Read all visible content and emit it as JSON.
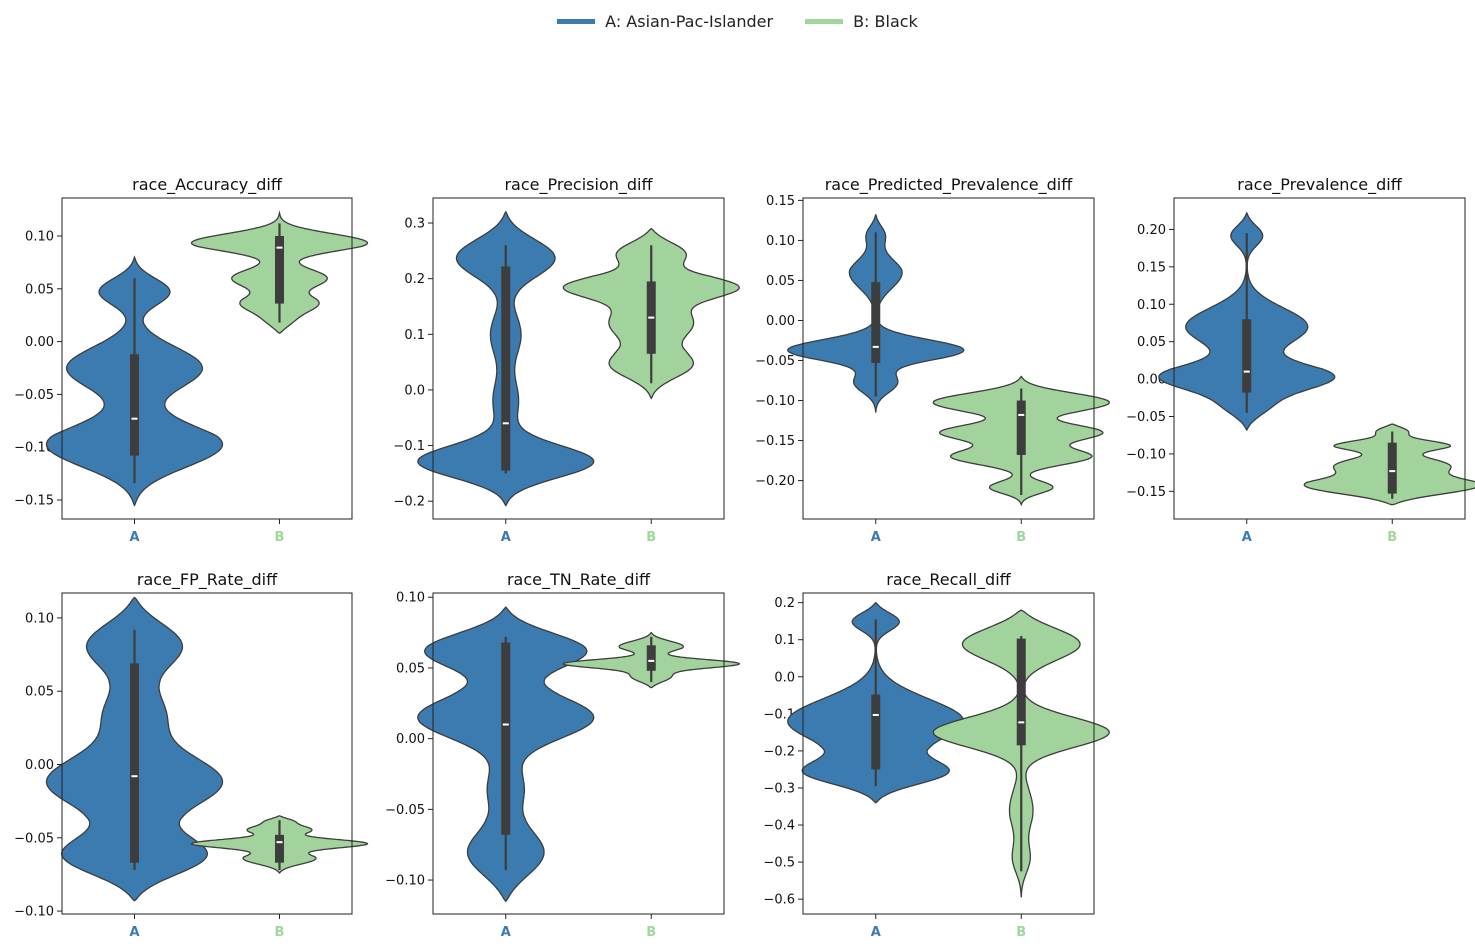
{
  "legend": {
    "items": [
      {
        "label": "A: Asian-Pac-Islander",
        "color": "#3b7bb0"
      },
      {
        "label": "B: Black",
        "color": "#9fd89a"
      }
    ]
  },
  "colors": {
    "A": "#3b7bb0",
    "B": "#a3d39c",
    "box": "#3d3d3d",
    "median": "#ffffff",
    "outline": "#3d3d3d"
  },
  "chart_data": [
    {
      "type": "violin",
      "title": "race_Accuracy_diff",
      "categories": [
        "A",
        "B"
      ],
      "ylim": [
        -0.168,
        0.136
      ],
      "yticks": [
        -0.15,
        -0.1,
        -0.05,
        0.0,
        0.05,
        0.1
      ],
      "ytick_labels": [
        "−0.15",
        "−0.10",
        "−0.05",
        "0.00",
        "0.05",
        "0.10"
      ],
      "series": [
        {
          "category": "A",
          "min": -0.155,
          "max": 0.08,
          "whisker": [
            -0.134,
            0.06
          ],
          "q1": -0.108,
          "median": -0.073,
          "q3": -0.012,
          "modes": [
            [
              -0.102,
              1.0,
              0.022
            ],
            [
              -0.025,
              0.7,
              0.02
            ],
            [
              0.05,
              0.55,
              0.013
            ]
          ]
        },
        {
          "category": "B",
          "min": 0.008,
          "max": 0.122,
          "whisker": [
            0.018,
            0.112
          ],
          "q1": 0.036,
          "median": 0.089,
          "q3": 0.1,
          "modes": [
            [
              0.095,
              1.0,
              0.009
            ],
            [
              0.06,
              0.5,
              0.009
            ],
            [
              0.035,
              0.42,
              0.008
            ],
            [
              0.018,
              0.22,
              0.008
            ]
          ]
        }
      ]
    },
    {
      "type": "violin",
      "title": "race_Precision_diff",
      "categories": [
        "A",
        "B"
      ],
      "ylim": [
        -0.232,
        0.345
      ],
      "yticks": [
        -0.2,
        -0.1,
        0.0,
        0.1,
        0.2,
        0.3
      ],
      "ytick_labels": [
        "−0.2",
        "−0.1",
        "0.0",
        "0.1",
        "0.2",
        "0.3"
      ],
      "series": [
        {
          "category": "A",
          "min": -0.208,
          "max": 0.32,
          "whisker": [
            -0.15,
            0.26
          ],
          "q1": -0.145,
          "median": -0.06,
          "q3": 0.222,
          "modes": [
            [
              -0.135,
              1.0,
              0.03
            ],
            [
              0.245,
              0.55,
              0.035
            ],
            [
              0.1,
              0.12,
              0.04
            ],
            [
              -0.02,
              0.1,
              0.04
            ]
          ]
        },
        {
          "category": "B",
          "min": -0.015,
          "max": 0.29,
          "whisker": [
            0.012,
            0.26
          ],
          "q1": 0.065,
          "median": 0.13,
          "q3": 0.195,
          "modes": [
            [
              0.185,
              1.0,
              0.02
            ],
            [
              0.25,
              0.6,
              0.022
            ],
            [
              0.12,
              0.5,
              0.03
            ],
            [
              0.04,
              0.6,
              0.025
            ]
          ]
        }
      ]
    },
    {
      "type": "violin",
      "title": "race_Predicted_Prevalence_diff",
      "categories": [
        "A",
        "B"
      ],
      "ylim": [
        -0.248,
        0.153
      ],
      "yticks": [
        -0.2,
        -0.15,
        -0.1,
        -0.05,
        0.0,
        0.05,
        0.1,
        0.15
      ],
      "ytick_labels": [
        "−0.20",
        "−0.15",
        "−0.10",
        "−0.05",
        "0.00",
        "0.05",
        "0.10",
        "0.15"
      ],
      "series": [
        {
          "category": "A",
          "min": -0.115,
          "max": 0.132,
          "whisker": [
            -0.095,
            0.11
          ],
          "q1": -0.053,
          "median": -0.033,
          "q3": 0.048,
          "modes": [
            [
              -0.037,
              1.0,
              0.013
            ],
            [
              -0.08,
              0.35,
              0.013
            ],
            [
              0.06,
              0.3,
              0.02
            ],
            [
              0.11,
              0.18,
              0.012
            ]
          ]
        },
        {
          "category": "B",
          "min": -0.23,
          "max": -0.07,
          "whisker": [
            -0.218,
            -0.085
          ],
          "q1": -0.168,
          "median": -0.118,
          "q3": -0.1,
          "modes": [
            [
              -0.1,
              1.0,
              0.012
            ],
            [
              -0.14,
              0.75,
              0.01
            ],
            [
              -0.17,
              0.65,
              0.01
            ],
            [
              -0.21,
              0.45,
              0.008
            ]
          ]
        }
      ]
    },
    {
      "type": "violin",
      "title": "race_Prevalence_diff",
      "categories": [
        "A",
        "B"
      ],
      "ylim": [
        -0.187,
        0.242
      ],
      "yticks": [
        -0.15,
        -0.1,
        -0.05,
        0.0,
        0.05,
        0.1,
        0.15,
        0.2
      ],
      "ytick_labels": [
        "−0.15",
        "−0.10",
        "−0.05",
        "0.00",
        "0.05",
        "0.10",
        "0.15",
        "0.20"
      ],
      "series": [
        {
          "category": "A",
          "min": -0.068,
          "max": 0.222,
          "whisker": [
            -0.045,
            0.195
          ],
          "q1": -0.018,
          "median": 0.01,
          "q3": 0.08,
          "modes": [
            [
              0.0,
              1.0,
              0.018
            ],
            [
              0.07,
              0.65,
              0.025
            ],
            [
              0.195,
              0.3,
              0.014
            ],
            [
              -0.04,
              0.35,
              0.015
            ]
          ]
        },
        {
          "category": "B",
          "min": -0.168,
          "max": -0.06,
          "whisker": [
            -0.16,
            -0.07
          ],
          "q1": -0.153,
          "median": -0.123,
          "q3": -0.085,
          "modes": [
            [
              -0.145,
              1.0,
              0.012
            ],
            [
              -0.115,
              0.55,
              0.01
            ],
            [
              -0.088,
              0.6,
              0.007
            ],
            [
              -0.068,
              0.3,
              0.006
            ]
          ]
        }
      ]
    },
    {
      "type": "violin",
      "title": "race_FP_Rate_diff",
      "categories": [
        "A",
        "B"
      ],
      "ylim": [
        -0.102,
        0.117
      ],
      "yticks": [
        -0.1,
        -0.05,
        0.0,
        0.05,
        0.1
      ],
      "ytick_labels": [
        "−0.10",
        "−0.05",
        "0.00",
        "0.05",
        "0.10"
      ],
      "series": [
        {
          "category": "A",
          "min": -0.093,
          "max": 0.114,
          "whisker": [
            -0.072,
            0.092
          ],
          "q1": -0.067,
          "median": -0.008,
          "q3": 0.069,
          "modes": [
            [
              -0.065,
              1.0,
              0.014
            ],
            [
              -0.012,
              0.85,
              0.018
            ],
            [
              0.085,
              0.65,
              0.016
            ],
            [
              0.035,
              0.28,
              0.016
            ]
          ]
        },
        {
          "category": "B",
          "min": -0.074,
          "max": -0.035,
          "whisker": [
            -0.072,
            -0.038
          ],
          "q1": -0.067,
          "median": -0.053,
          "q3": -0.048,
          "modes": [
            [
              -0.054,
              1.0,
              0.003
            ],
            [
              -0.065,
              0.45,
              0.004
            ],
            [
              -0.044,
              0.4,
              0.003
            ],
            [
              -0.038,
              0.25,
              0.002
            ]
          ]
        }
      ]
    },
    {
      "type": "violin",
      "title": "race_TN_Rate_diff",
      "categories": [
        "A",
        "B"
      ],
      "ylim": [
        -0.124,
        0.103
      ],
      "yticks": [
        -0.1,
        -0.05,
        0.0,
        0.05,
        0.1
      ],
      "ytick_labels": [
        "−0.10",
        "−0.05",
        "0.00",
        "0.05",
        "0.10"
      ],
      "series": [
        {
          "category": "A",
          "min": -0.115,
          "max": 0.093,
          "whisker": [
            -0.093,
            0.072
          ],
          "q1": -0.068,
          "median": 0.01,
          "q3": 0.068,
          "modes": [
            [
              0.065,
              1.0,
              0.013
            ],
            [
              0.015,
              0.75,
              0.015
            ],
            [
              -0.085,
              0.45,
              0.017
            ],
            [
              -0.035,
              0.15,
              0.015
            ]
          ]
        },
        {
          "category": "B",
          "min": 0.036,
          "max": 0.075,
          "whisker": [
            0.04,
            0.072
          ],
          "q1": 0.048,
          "median": 0.055,
          "q3": 0.066,
          "modes": [
            [
              0.053,
              1.0,
              0.003
            ],
            [
              0.066,
              0.4,
              0.004
            ],
            [
              0.043,
              0.28,
              0.004
            ]
          ]
        }
      ]
    },
    {
      "type": "violin",
      "title": "race_Recall_diff",
      "categories": [
        "A",
        "B"
      ],
      "ylim": [
        -0.64,
        0.226
      ],
      "yticks": [
        -0.6,
        -0.5,
        -0.4,
        -0.3,
        -0.2,
        -0.1,
        0.0,
        0.1,
        0.2
      ],
      "ytick_labels": [
        "−0.6",
        "−0.5",
        "−0.4",
        "−0.3",
        "−0.2",
        "−0.1",
        "0.0",
        "0.1",
        "0.2"
      ],
      "series": [
        {
          "category": "A",
          "min": -0.34,
          "max": 0.2,
          "whisker": [
            -0.295,
            0.155
          ],
          "q1": -0.25,
          "median": -0.103,
          "q3": -0.048,
          "modes": [
            [
              -0.265,
              1.0,
              0.035
            ],
            [
              -0.12,
              0.9,
              0.06
            ],
            [
              0.155,
              0.45,
              0.025
            ]
          ]
        },
        {
          "category": "B",
          "min": -0.595,
          "max": 0.18,
          "whisker": [
            -0.525,
            0.11
          ],
          "q1": -0.185,
          "median": -0.123,
          "q3": 0.103,
          "modes": [
            [
              0.1,
              1.0,
              0.045
            ],
            [
              -0.15,
              0.9,
              0.04
            ],
            [
              -0.36,
              0.12,
              0.06
            ],
            [
              -0.5,
              0.13,
              0.04
            ]
          ]
        }
      ]
    }
  ]
}
